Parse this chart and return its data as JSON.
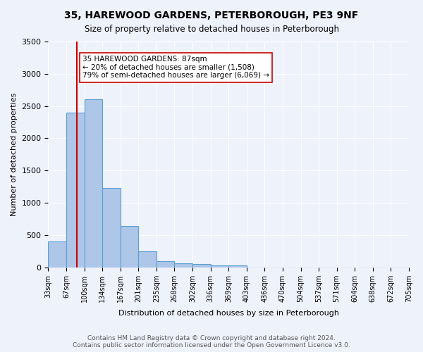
{
  "title": "35, HAREWOOD GARDENS, PETERBOROUGH, PE3 9NF",
  "subtitle": "Size of property relative to detached houses in Peterborough",
  "xlabel": "Distribution of detached houses by size in Peterborough",
  "ylabel": "Number of detached properties",
  "bin_labels": [
    "33sqm",
    "67sqm",
    "100sqm",
    "134sqm",
    "167sqm",
    "201sqm",
    "235sqm",
    "268sqm",
    "302sqm",
    "336sqm",
    "369sqm",
    "403sqm",
    "436sqm",
    "470sqm",
    "504sqm",
    "537sqm",
    "571sqm",
    "604sqm",
    "638sqm",
    "672sqm",
    "705sqm"
  ],
  "bar_values": [
    400,
    2400,
    2600,
    1230,
    640,
    250,
    100,
    60,
    50,
    30,
    30,
    0,
    0,
    0,
    0,
    0,
    0,
    0,
    0,
    0
  ],
  "bar_color": "#aec6e8",
  "bar_edge_color": "#5a9fd4",
  "bar_fill_alpha": 0.5,
  "vline_x": 1.0,
  "vline_color": "#cc0000",
  "annotation_text": "35 HAREWOOD GARDENS: 87sqm\n← 20% of detached houses are smaller (1,508)\n79% of semi-detached houses are larger (6,069) →",
  "annotation_box_color": "#ffffff",
  "annotation_box_edge": "#cc0000",
  "ylim": [
    0,
    3500
  ],
  "yticks": [
    0,
    500,
    1000,
    1500,
    2000,
    2500,
    3000,
    3500
  ],
  "bg_color": "#eef2fb",
  "grid_color": "#ffffff",
  "footer": "Contains HM Land Registry data © Crown copyright and database right 2024.\nContains public sector information licensed under the Open Government Licence v3.0."
}
